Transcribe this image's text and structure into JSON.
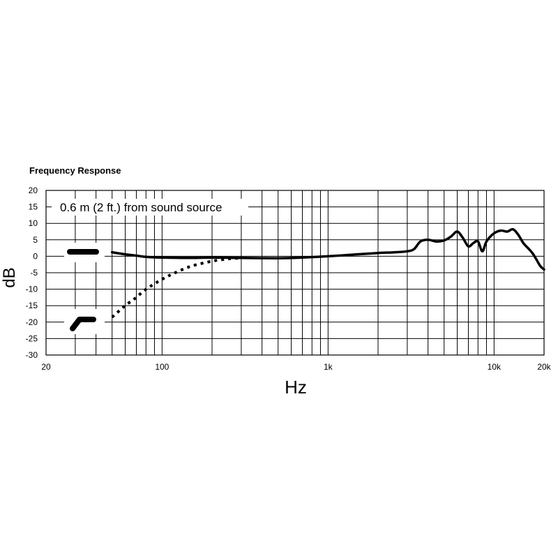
{
  "chart_data": {
    "type": "line",
    "title": "Frequency Response",
    "xlabel": "Hz",
    "ylabel": "dB",
    "xscale": "log",
    "xlim": [
      20,
      20000
    ],
    "ylim": [
      -30,
      20
    ],
    "yticks": [
      20,
      15,
      10,
      5,
      0,
      -5,
      -10,
      -15,
      -20,
      -25,
      -30
    ],
    "xticks": [
      {
        "value": 20,
        "label": "20"
      },
      {
        "value": 100,
        "label": "100"
      },
      {
        "value": 1000,
        "label": "1k"
      },
      {
        "value": 10000,
        "label": "10k"
      },
      {
        "value": 20000,
        "label": "20k"
      }
    ],
    "grid": true,
    "annotation": "0.6 m (2 ft.) from sound source",
    "legend_placement": "left",
    "legend_icons": [
      "flat-switch-icon",
      "rolloff-switch-icon"
    ],
    "series": [
      {
        "style": "solid",
        "color": "#000000",
        "x": [
          50,
          60,
          70,
          80,
          100,
          150,
          200,
          300,
          500,
          700,
          1000,
          1500,
          2000,
          2500,
          3000,
          3300,
          3600,
          4000,
          4500,
          5000,
          5500,
          6000,
          6500,
          7000,
          7500,
          8000,
          8500,
          9000,
          10000,
          11000,
          12000,
          13000,
          14000,
          15000,
          16000,
          17000,
          18000,
          19000,
          20000
        ],
        "y": [
          1.2,
          0.6,
          0.2,
          -0.2,
          -0.4,
          -0.5,
          -0.4,
          -0.5,
          -0.6,
          -0.4,
          0.0,
          0.6,
          1.0,
          1.2,
          1.5,
          2.2,
          4.5,
          5.0,
          4.5,
          4.8,
          6.0,
          7.5,
          5.5,
          3.0,
          4.0,
          4.5,
          1.5,
          4.5,
          7.0,
          7.8,
          7.5,
          8.2,
          6.5,
          4.0,
          2.5,
          1.0,
          -1.0,
          -3.0,
          -4.0
        ]
      },
      {
        "style": "dotted",
        "color": "#000000",
        "x": [
          50,
          60,
          70,
          80,
          100,
          120,
          150,
          200,
          250,
          300
        ],
        "y": [
          -18.5,
          -15.0,
          -12.5,
          -10.0,
          -7.0,
          -5.0,
          -3.0,
          -1.5,
          -0.8,
          -0.5
        ]
      }
    ]
  }
}
